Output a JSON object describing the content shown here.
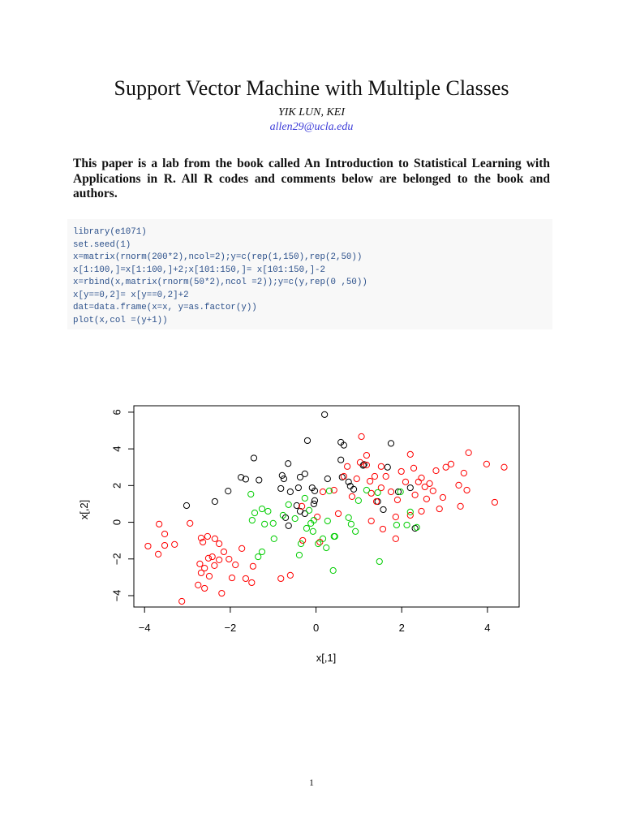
{
  "title": "Support Vector Machine with Multiple Classes",
  "author": "YIK LUN, KEI",
  "email": "allen29@ucla.edu",
  "abstract": "This paper is a lab from the book called An Introduction to Statistical Learning with Applications in R. All R codes and comments below are belonged to the book and authors.",
  "code": [
    "library(e1071)",
    "set.seed(1)",
    "x=matrix(rnorm(200*2),ncol=2);y=c(rep(1,150),rep(2,50))",
    "x[1:100,]=x[1:100,]+2;x[101:150,]= x[101:150,]-2",
    "x=rbind(x,matrix(rnorm(50*2),ncol =2));y=c(y,rep(0 ,50))",
    "x[y==0,2]= x[y==0,2]+2",
    "dat=data.frame(x=x, y=as.factor(y))",
    "plot(x,col =(y+1))"
  ],
  "page_number": "1",
  "chart_data": {
    "type": "scatter",
    "x_label": "x[,1]",
    "y_label": "x[,2]",
    "xlim": [
      -4.25,
      4.74
    ],
    "ylim": [
      -4.62,
      6.35
    ],
    "xticks": [
      {
        "value": -4,
        "label": "−4"
      },
      {
        "value": -2,
        "label": "−2"
      },
      0,
      2,
      4
    ],
    "yticks": [
      {
        "value": -4,
        "label": "−4"
      },
      {
        "value": -2,
        "label": "−2"
      },
      0,
      2,
      4,
      6
    ],
    "series": [
      {
        "color": "#000000",
        "x": [
          0.2,
          -0.2,
          0.58,
          0.65,
          1.75,
          -1.45,
          -0.65,
          0.58,
          1.12,
          1.67,
          -1.75,
          -1.64,
          -1.33,
          -0.79,
          -0.75,
          -0.37,
          -0.26,
          0.27,
          0.61,
          0.76,
          0.8,
          0.88,
          -2.05,
          -2.36,
          -3.02,
          -0.82,
          -0.6,
          -0.41,
          -0.09,
          -0.03,
          -0.45,
          -0.37,
          -0.26,
          -0.71,
          -0.64,
          -0.03,
          -0.05,
          1.44,
          1.57,
          1.92,
          2.2,
          2.31,
          1.1
        ],
        "values": [
          5.87,
          4.45,
          4.36,
          4.2,
          4.3,
          3.5,
          3.2,
          3.4,
          3.15,
          3.0,
          2.45,
          2.35,
          2.3,
          2.55,
          2.37,
          2.46,
          2.64,
          2.37,
          2.46,
          2.2,
          1.97,
          1.8,
          1.7,
          1.13,
          0.91,
          1.84,
          1.66,
          1.88,
          1.88,
          1.71,
          0.91,
          0.6,
          0.47,
          0.25,
          -0.19,
          1.18,
          1.0,
          1.13,
          0.69,
          1.66,
          1.88,
          -0.33,
          3.1
        ]
      },
      {
        "color": "#ff0000",
        "x": [
          -3.92,
          -3.66,
          -3.53,
          -3.68,
          -3.53,
          -3.3,
          -2.94,
          -3.13,
          -2.68,
          -2.64,
          -2.53,
          -2.36,
          -2.26,
          -2.51,
          -2.42,
          -2.26,
          -2.15,
          -2.03,
          -1.88,
          -2.71,
          -2.68,
          -2.6,
          -2.49,
          -2.37,
          -2.75,
          -2.6,
          -2.2,
          -1.96,
          -1.64,
          -1.5,
          -1.47,
          -1.73,
          -0.82,
          -0.6,
          -0.31,
          -0.33,
          0.03,
          0.09,
          0.16,
          0.42,
          0.52,
          0.65,
          0.73,
          0.84,
          0.95,
          1.03,
          1.06,
          1.18,
          1.26,
          1.37,
          1.29,
          1.41,
          1.52,
          1.63,
          1.75,
          1.29,
          1.56,
          1.86,
          1.9,
          1.99,
          2.09,
          2.2,
          2.28,
          2.31,
          2.39,
          2.46,
          2.54,
          2.58,
          2.65,
          2.73,
          2.8,
          2.88,
          2.96,
          3.03,
          3.15,
          3.33,
          3.37,
          3.45,
          3.52,
          3.56,
          3.98,
          4.17,
          4.39,
          2.46,
          2.2,
          1.86,
          1.52,
          1.18
        ],
        "values": [
          -1.3,
          -0.1,
          -0.64,
          -1.74,
          -1.26,
          -1.21,
          -0.06,
          -4.31,
          -0.86,
          -1.08,
          -0.77,
          -0.9,
          -1.17,
          -1.96,
          -1.88,
          -2.05,
          -1.61,
          -2.01,
          -2.32,
          -2.27,
          -2.76,
          -2.5,
          -2.94,
          -2.36,
          -3.42,
          -3.6,
          -3.87,
          -3.03,
          -3.07,
          -3.29,
          -2.4,
          -1.43,
          -3.07,
          -2.89,
          -0.99,
          0.87,
          0.29,
          -1.08,
          1.66,
          1.75,
          0.47,
          2.5,
          3.04,
          1.4,
          2.37,
          3.26,
          4.67,
          3.65,
          2.24,
          2.5,
          1.58,
          1.13,
          1.88,
          2.5,
          1.66,
          0.07,
          -0.37,
          -0.9,
          1.22,
          2.77,
          2.2,
          3.7,
          2.95,
          1.49,
          2.2,
          2.42,
          1.93,
          1.27,
          2.11,
          1.71,
          2.81,
          0.73,
          1.35,
          3.0,
          3.17,
          2.02,
          0.87,
          2.68,
          1.75,
          3.79,
          3.17,
          1.09,
          3.0,
          0.6,
          0.38,
          0.29,
          3.04,
          3.12
        ]
      },
      {
        "color": "#00cd00",
        "x": [
          -1.52,
          -1.43,
          -1.26,
          -1.12,
          -1.49,
          -1.2,
          -1.0,
          -0.77,
          -0.64,
          -0.49,
          -0.26,
          -0.16,
          -0.22,
          -0.12,
          -0.07,
          0.05,
          0.16,
          0.27,
          0.42,
          0.44,
          0.24,
          -0.35,
          -0.39,
          -1.35,
          -1.26,
          -0.98,
          0.82,
          0.99,
          0.92,
          1.48,
          0.4,
          1.18,
          1.44,
          1.97,
          1.88,
          2.12,
          2.35,
          2.2,
          0.31,
          -0.05,
          0.76
        ],
        "values": [
          1.53,
          0.51,
          0.73,
          0.6,
          0.11,
          -0.1,
          -0.06,
          0.38,
          0.96,
          0.2,
          1.31,
          0.65,
          -0.33,
          -0.06,
          -0.5,
          -1.17,
          -0.9,
          0.07,
          -0.77,
          -0.77,
          -1.39,
          -1.17,
          -1.79,
          -1.88,
          -1.61,
          -0.9,
          -0.1,
          1.18,
          -0.5,
          -2.14,
          -2.63,
          1.75,
          1.62,
          1.66,
          -0.15,
          -0.15,
          -0.28,
          0.56,
          1.71,
          0.11,
          0.25
        ]
      }
    ]
  }
}
